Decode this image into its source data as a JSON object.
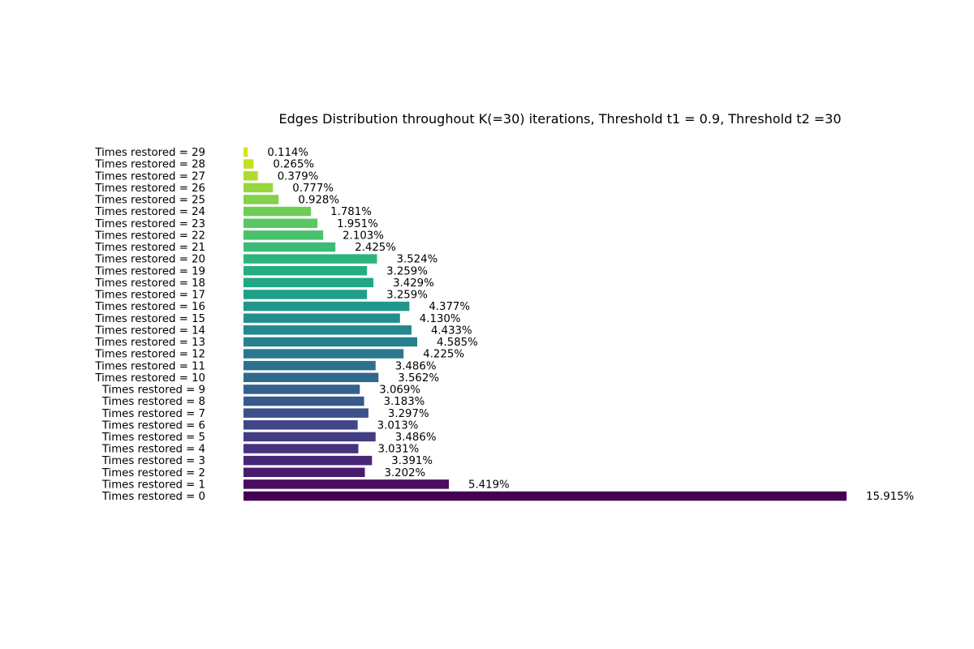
{
  "chart_data": {
    "type": "bar",
    "orientation": "horizontal",
    "title": "Edges Distribution throughout K(=30) iterations, Threshold t1 = 0.9, Threshold t2 =30",
    "xlabel": "",
    "ylabel": "",
    "grid": false,
    "axes_visible": false,
    "colormap": "viridis",
    "categories": [
      "Times restored = 0",
      "Times restored = 1",
      "Times restored = 2",
      "Times restored = 3",
      "Times restored = 4",
      "Times restored = 5",
      "Times restored = 6",
      "Times restored = 7",
      "Times restored = 8",
      "Times restored = 9",
      "Times restored = 10",
      "Times restored = 11",
      "Times restored = 12",
      "Times restored = 13",
      "Times restored = 14",
      "Times restored = 15",
      "Times restored = 16",
      "Times restored = 17",
      "Times restored = 18",
      "Times restored = 19",
      "Times restored = 20",
      "Times restored = 21",
      "Times restored = 22",
      "Times restored = 23",
      "Times restored = 24",
      "Times restored = 25",
      "Times restored = 26",
      "Times restored = 27",
      "Times restored = 28",
      "Times restored = 29"
    ],
    "values": [
      15.915,
      5.419,
      3.202,
      3.391,
      3.031,
      3.486,
      3.013,
      3.297,
      3.183,
      3.069,
      3.562,
      3.486,
      4.225,
      4.585,
      4.433,
      4.13,
      4.377,
      3.259,
      3.429,
      3.259,
      3.524,
      2.425,
      2.103,
      1.951,
      1.781,
      0.928,
      0.777,
      0.379,
      0.265,
      0.114
    ],
    "data_labels": [
      "15.915%",
      "5.419%",
      "3.202%",
      "3.391%",
      "3.031%",
      "3.486%",
      "3.013%",
      "3.297%",
      "3.183%",
      "3.069%",
      "3.562%",
      "3.486%",
      "4.225%",
      "4.585%",
      "4.433%",
      "4.130%",
      "4.377%",
      "3.259%",
      "3.429%",
      "3.259%",
      "3.524%",
      "2.425%",
      "2.103%",
      "1.951%",
      "1.781%",
      "0.928%",
      "0.777%",
      "0.379%",
      "0.265%",
      "0.114%"
    ],
    "colors": [
      "#440154",
      "#470e61",
      "#481b6d",
      "#472777",
      "#46327e",
      "#433d84",
      "#404688",
      "#3c508b",
      "#38598c",
      "#34618d",
      "#31688e",
      "#2e718e",
      "#2b788e",
      "#28808e",
      "#26878e",
      "#238f8d",
      "#21968b",
      "#1f9f88",
      "#20a785",
      "#25ad82",
      "#2db47c",
      "#3bbb75",
      "#4ac16d",
      "#5bc664",
      "#6ecd59",
      "#82d24b",
      "#97d73e",
      "#addc30",
      "#c4e021",
      "#d9e219"
    ]
  }
}
